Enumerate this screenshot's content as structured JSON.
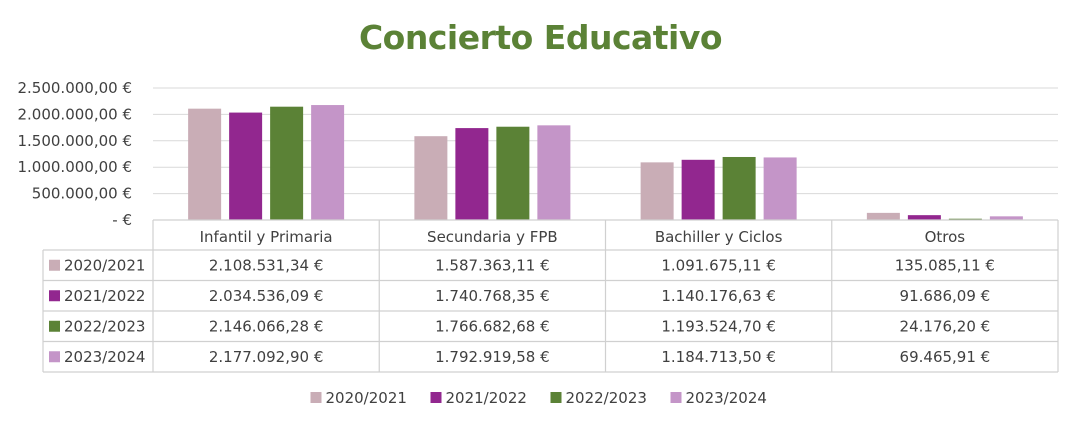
{
  "chart_data": {
    "type": "bar",
    "title": "Concierto Educativo",
    "categories": [
      "Infantil y Primaria",
      "Secundaria y FPB",
      "Bachiller y Ciclos",
      "Otros"
    ],
    "series": [
      {
        "name": "2020/2021",
        "color": "#c9adb6",
        "values": [
          2108531.34,
          1587363.11,
          1091675.11,
          135085.11
        ],
        "labels": [
          "2.108.531,34 €",
          "1.587.363,11 €",
          "1.091.675,11 €",
          "135.085,11 €"
        ]
      },
      {
        "name": "2021/2022",
        "color": "#92278f",
        "values": [
          2034536.09,
          1740768.35,
          1140176.63,
          91686.09
        ],
        "labels": [
          "2.034.536,09 €",
          "1.740.768,35 €",
          "1.140.176,63 €",
          "91.686,09 €"
        ]
      },
      {
        "name": "2022/2023",
        "color": "#5b8236",
        "values": [
          2146066.28,
          1766682.68,
          1193524.7,
          24176.2
        ],
        "labels": [
          "2.146.066,28 €",
          "1.766.682,68 €",
          "1.193.524,70 €",
          "24.176,20 €"
        ]
      },
      {
        "name": "2023/2024",
        "color": "#c495c8",
        "values": [
          2177092.9,
          1792919.58,
          1184713.5,
          69465.91
        ],
        "labels": [
          "2.177.092,90 €",
          "1.792.919,58 €",
          "1.184.713,50 €",
          "69.465,91 €"
        ]
      }
    ],
    "ylim": [
      0,
      2500000
    ],
    "y_ticks": [
      0,
      500000,
      1000000,
      1500000,
      2000000,
      2500000
    ],
    "y_tick_labels": [
      "-  €",
      "500.000,00 €",
      "1.000.000,00 €",
      "1.500.000,00 €",
      "2.000.000,00 €",
      "2.500.000,00 €"
    ],
    "grid": true,
    "data_table": true,
    "legend_position": "bottom"
  }
}
